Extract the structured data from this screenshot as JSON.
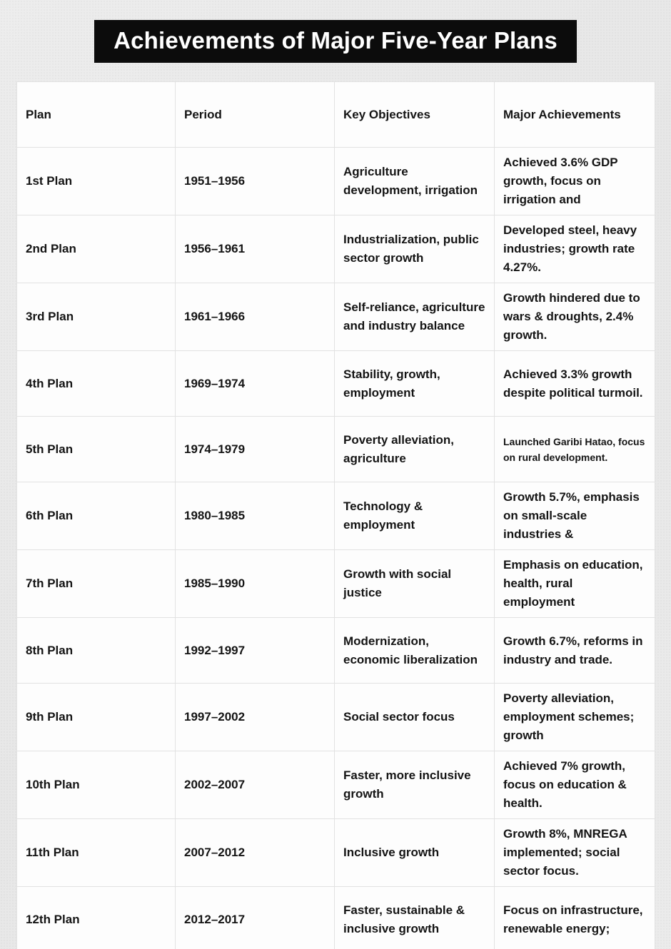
{
  "page": {
    "title": "Achievements of Major Five-Year Plans"
  },
  "colors": {
    "banner_bg": "#0c0c0c",
    "banner_text": "#ffffff",
    "page_bg": "#e9e9e9",
    "cell_bg": "#fdfdfd",
    "border": "#e2e2e2",
    "text": "#141414"
  },
  "table": {
    "headers": [
      "Plan",
      "Period",
      "Key Objectives",
      "Major Achievements"
    ],
    "rows": [
      {
        "plan": "1st Plan",
        "period": "1951–1956",
        "objectives": "Agriculture development, irrigation",
        "achievements": "Achieved 3.6% GDP growth, focus on irrigation and"
      },
      {
        "plan": "2nd Plan",
        "period": "1956–1961",
        "objectives": "Industrialization, public sector growth",
        "achievements": "Developed steel, heavy industries; growth rate 4.27%."
      },
      {
        "plan": "3rd Plan",
        "period": "1961–1966",
        "objectives": "Self-reliance, agriculture and industry balance",
        "achievements": "Growth hindered due to wars & droughts, 2.4% growth."
      },
      {
        "plan": "4th Plan",
        "period": "1969–1974",
        "objectives": "Stability, growth, employment",
        "achievements": "Achieved 3.3% growth despite political turmoil."
      },
      {
        "plan": "5th Plan",
        "period": "1974–1979",
        "objectives": "Poverty alleviation, agriculture",
        "achievements": "Launched Garibi Hatao, focus on rural development.",
        "achievements_small": true
      },
      {
        "plan": "6th Plan",
        "period": "1980–1985",
        "objectives": "Technology & employment",
        "achievements": "Growth 5.7%, emphasis on small-scale industries &"
      },
      {
        "plan": "7th Plan",
        "period": "1985–1990",
        "objectives": "Growth with social justice",
        "achievements": "Emphasis on education, health, rural employment"
      },
      {
        "plan": "8th Plan",
        "period": "1992–1997",
        "objectives": "Modernization, economic liberalization",
        "achievements": "Growth 6.7%, reforms in industry and trade."
      },
      {
        "plan": "9th Plan",
        "period": "1997–2002",
        "objectives": "Social sector focus",
        "achievements": "Poverty alleviation, employment schemes; growth"
      },
      {
        "plan": "10th Plan",
        "period": "2002–2007",
        "objectives": "Faster, more inclusive growth",
        "achievements": "Achieved 7% growth, focus on education & health."
      },
      {
        "plan": "11th Plan",
        "period": "2007–2012",
        "objectives": "Inclusive growth",
        "achievements": "Growth 8%, MNREGA implemented; social sector focus."
      },
      {
        "plan": "12th Plan",
        "period": "2012–2017",
        "objectives": "Faster, sustainable & inclusive growth",
        "achievements": "Focus on infrastructure, renewable energy;"
      }
    ]
  }
}
